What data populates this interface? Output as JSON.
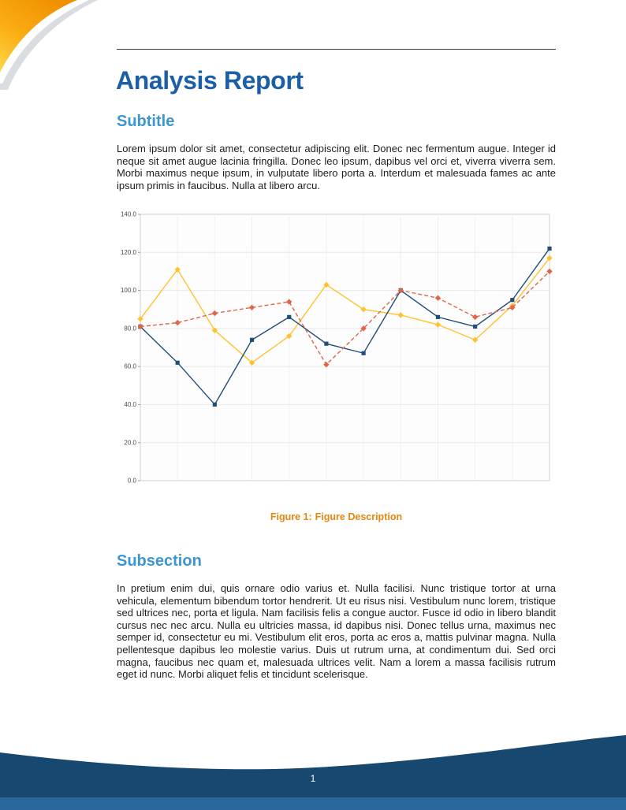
{
  "page": {
    "title": "Analysis Report",
    "footer_page_number": "1"
  },
  "sections": [
    {
      "heading": "Subtitle",
      "body": "Lorem ipsum dolor sit amet, consectetur adipiscing elit. Donec nec fermentum augue. Integer id neque sit amet augue lacinia fringilla. Donec leo ipsum, dapibus vel orci et, viverra viverra sem. Morbi maximus neque ipsum, in vulputate libero porta a. Interdum et malesuada fames ac ante ipsum primis in faucibus. Nulla at libero arcu."
    },
    {
      "heading": "Subsection",
      "body": "In pretium enim dui, quis ornare odio varius et. Nulla facilisi. Nunc tristique tortor at urna vehicula, elementum bibendum tortor hendrerit. Ut eu risus nisi. Vestibulum nunc lorem, tristique sed ultrices nec, porta et ligula. Nam facilisis felis a congue auctor. Fusce id odio in libero blandit cursus nec nec arcu. Nulla eu ultricies massa, id dapibus nisi. Donec tellus urna, maximus nec semper id, consectetur eu mi. Vestibulum elit eros, porta ac eros a, mattis pulvinar magna. Nulla pellentesque dapibus leo molestie varius. Duis ut rutrum urna, at condimentum dui. Sed orci magna, faucibus nec quam et, malesuada ultrices velit. Nam a lorem a massa facilisis rutrum eget id nunc. Morbi aliquet felis et tincidunt scelerisque."
    }
  ],
  "figure": {
    "caption_label": "Figure 1:",
    "caption_text": "Figure Description"
  },
  "colors": {
    "title_blue": "#1b5fa8",
    "heading_blue": "#3b96d2",
    "caption_orange": "#e7860e",
    "footer_navy": "#17486f",
    "footer_strip_blue": "#2a679d",
    "swoosh_orange": "#f09000",
    "swoosh_yellow": "#ffd84a"
  },
  "chart_data": {
    "type": "line",
    "title": "",
    "xlabel": "",
    "ylabel": "",
    "x": [
      1,
      2,
      3,
      4,
      5,
      6,
      7,
      8,
      9,
      10,
      11,
      12
    ],
    "ylim": [
      0,
      140
    ],
    "y_ticks": [
      0,
      20,
      40,
      60,
      80,
      100,
      120,
      140
    ],
    "y_tick_labels": [
      "0.0",
      "20.0",
      "40.0",
      "60.0",
      "80.0",
      "100.0",
      "120.0",
      "140.0"
    ],
    "x_tick_labels": [],
    "grid": true,
    "legend": false,
    "series": [
      {
        "name": "yellow-solid-diamonds",
        "color": "#ffc22e",
        "marker": "diamond",
        "dash": false,
        "values": [
          85,
          111,
          79,
          62,
          76,
          103,
          90,
          87,
          82,
          74,
          92,
          117
        ]
      },
      {
        "name": "navy-solid-squares",
        "color": "#1f4e79",
        "marker": "square",
        "dash": false,
        "values": [
          81,
          62,
          40,
          74,
          86,
          72,
          67,
          100,
          86,
          81,
          95,
          122
        ]
      },
      {
        "name": "salmon-dashed-diamonds",
        "color": "#e0654a",
        "marker": "diamond",
        "dash": true,
        "values": [
          81,
          83,
          88,
          91,
          94,
          61,
          80,
          100,
          96,
          86,
          91,
          110
        ]
      }
    ]
  }
}
